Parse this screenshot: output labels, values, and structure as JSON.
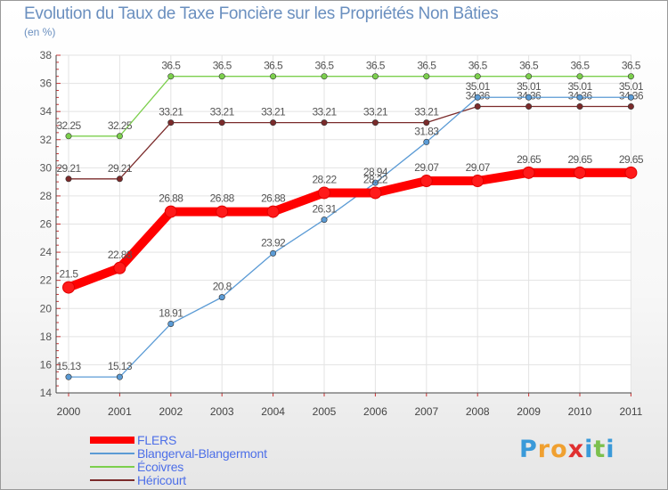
{
  "chart_data": {
    "type": "line",
    "title": "Evolution du Taux de Taxe Foncière sur les Propriétés Non Bâties",
    "ylabel": "(en %)",
    "xlabel": "",
    "categories": [
      "2000",
      "2001",
      "2002",
      "2003",
      "2004",
      "2005",
      "2006",
      "2007",
      "2008",
      "2009",
      "2010",
      "2011"
    ],
    "ylim": [
      14,
      38
    ],
    "yticks": [
      "14",
      "16",
      "18",
      "20",
      "22",
      "24",
      "26",
      "28",
      "30",
      "32",
      "34",
      "36",
      "38"
    ],
    "grid": true,
    "legend_position": "bottom-left",
    "series": [
      {
        "name": "FLERS",
        "color": "#ff0000",
        "values": [
          21.5,
          22.88,
          26.88,
          26.88,
          26.88,
          28.22,
          28.22,
          29.07,
          29.07,
          29.65,
          29.65,
          29.65
        ],
        "labels": [
          "21.5",
          "22.88",
          "26.88",
          "26.88",
          "26.88",
          "28.22",
          "28.22",
          "29.07",
          "29.07",
          "29.65",
          "29.65",
          "29.65"
        ]
      },
      {
        "name": "Blangerval-Blangermont",
        "color": "#5b9bd5",
        "values": [
          15.13,
          15.13,
          18.91,
          20.8,
          23.92,
          26.31,
          28.94,
          31.83,
          35.01,
          35.01,
          35.01,
          35.01
        ],
        "labels": [
          "15.13",
          "15.13",
          "18.91",
          "20.8",
          "23.92",
          "26.31",
          "28.94",
          "31.83",
          "35.01",
          "35.01",
          "35.01",
          "35.01"
        ]
      },
      {
        "name": "Écoivres",
        "color": "#7ccf4d",
        "values": [
          32.25,
          32.25,
          36.5,
          36.5,
          36.5,
          36.5,
          36.5,
          36.5,
          36.5,
          36.5,
          36.5,
          36.5
        ],
        "labels": [
          "32.25",
          "32.25",
          "36.5",
          "36.5",
          "36.5",
          "36.5",
          "36.5",
          "36.5",
          "36.5",
          "36.5",
          "36.5",
          "36.5"
        ]
      },
      {
        "name": "Héricourt",
        "color": "#7b2b2b",
        "values": [
          29.21,
          29.21,
          33.21,
          33.21,
          33.21,
          33.21,
          33.21,
          33.21,
          34.36,
          34.36,
          34.36,
          34.36
        ],
        "labels": [
          "29.21",
          "29.21",
          "33.21",
          "33.21",
          "33.21",
          "33.21",
          "33.21",
          "33.21",
          "34.36",
          "34.36",
          "34.36",
          "34.36"
        ]
      }
    ]
  },
  "logo": {
    "text": "Proxiti",
    "letters": [
      {
        "ch": "P",
        "color": "#3a9ad9"
      },
      {
        "ch": "r",
        "color": "#f0a030"
      },
      {
        "ch": "o",
        "color": "#f0a030"
      },
      {
        "ch": "x",
        "color": "#e03030"
      },
      {
        "ch": "i",
        "color": "#3a9ad9"
      },
      {
        "ch": "t",
        "color": "#7cc04d"
      },
      {
        "ch": "i",
        "color": "#3a9ad9"
      }
    ]
  }
}
